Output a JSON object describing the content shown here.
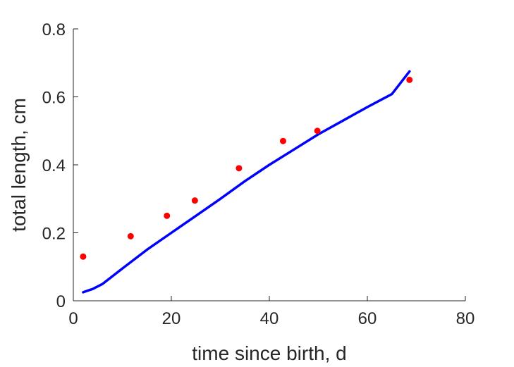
{
  "chart_data": {
    "type": "scatter",
    "xlabel": "time since birth, d",
    "ylabel": "total length, cm",
    "xlim": [
      0,
      80
    ],
    "ylim": [
      0,
      0.8
    ],
    "xticks": [
      0,
      20,
      40,
      60,
      80
    ],
    "yticks": [
      0,
      0.2,
      0.4,
      0.6,
      0.8
    ],
    "xtick_labels": [
      "0",
      "20",
      "40",
      "60",
      "80"
    ],
    "ytick_labels": [
      "0",
      "0.2",
      "0.4",
      "0.6",
      "0.8"
    ],
    "grid": false,
    "box": false,
    "series": [
      {
        "kind": "points",
        "color": "#ff0000",
        "x": [
          2,
          11.7,
          19.1,
          24.8,
          33.8,
          42.8,
          49.8,
          68.6
        ],
        "y": [
          0.13,
          0.19,
          0.25,
          0.295,
          0.39,
          0.47,
          0.5,
          0.65
        ]
      },
      {
        "kind": "line",
        "color": "#0000ff",
        "x": [
          2,
          4,
          6,
          10,
          15,
          20,
          25,
          30,
          35,
          40,
          45,
          50,
          55,
          60,
          65,
          68.6
        ],
        "y": [
          0.025,
          0.035,
          0.05,
          0.095,
          0.15,
          0.2,
          0.25,
          0.3,
          0.352,
          0.4,
          0.445,
          0.49,
          0.53,
          0.57,
          0.608,
          0.675
        ]
      }
    ]
  }
}
